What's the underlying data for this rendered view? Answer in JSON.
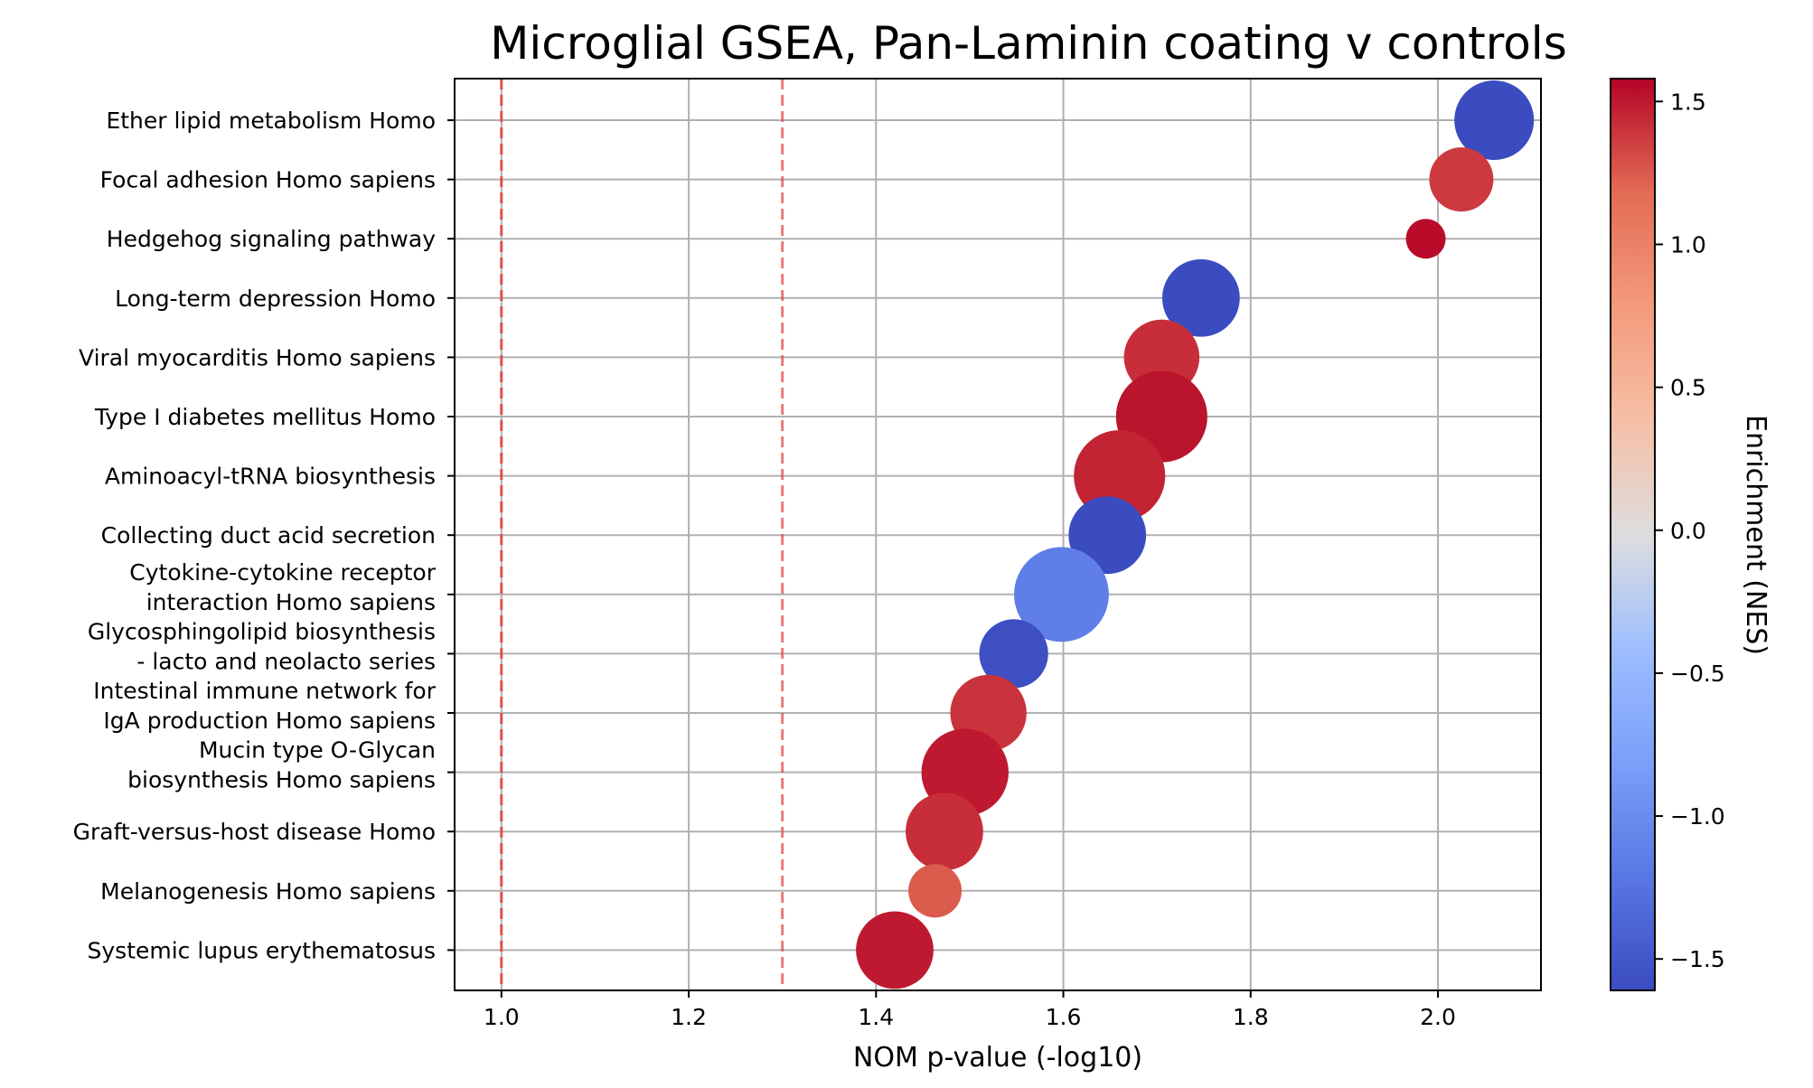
{
  "chart_data": {
    "type": "scatter",
    "title": "Microglial GSEA, Pan-Laminin coating v controls",
    "xlabel": "NOM p-value (-log10)",
    "colorbar_label": "Enrichment (NES)",
    "xlim": [
      0.95,
      2.11
    ],
    "x_ticks": [
      "1.0",
      "1.2",
      "1.4",
      "1.6",
      "1.8",
      "2.0"
    ],
    "x_tick_values": [
      1.0,
      1.2,
      1.4,
      1.6,
      1.8,
      2.0
    ],
    "colorbar_ticks": [
      "1.5",
      "1.0",
      "0.5",
      "0.0",
      "−0.5",
      "−1.0",
      "−1.5"
    ],
    "colorbar_tick_values": [
      1.5,
      1.0,
      0.5,
      0.0,
      -0.5,
      -1.0,
      -1.5
    ],
    "colorbar_range": [
      -1.61,
      1.58
    ],
    "colormap": "coolwarm",
    "reference_lines": [
      1.0,
      1.3
    ],
    "reference_line_color": "#e05050",
    "grid": true,
    "point_size_note": "relative bubble size, unitless",
    "points": [
      {
        "label": "Ether lipid metabolism Homo",
        "lines": [
          "Ether lipid metabolism Homo"
        ],
        "x": 2.06,
        "nes": -1.58,
        "size": 1.0
      },
      {
        "label": "Focal adhesion Homo sapiens",
        "lines": [
          "Focal adhesion Homo sapiens"
        ],
        "x": 2.025,
        "nes": 1.38,
        "size": 0.65
      },
      {
        "label": "Hedgehog signaling pathway",
        "lines": [
          "Hedgehog signaling pathway"
        ],
        "x": 1.987,
        "nes": 1.55,
        "size": 0.25
      },
      {
        "label": "Long-term depression Homo",
        "lines": [
          "Long-term depression Homo"
        ],
        "x": 1.747,
        "nes": -1.58,
        "size": 0.95
      },
      {
        "label": "Viral myocarditis Homo sapiens",
        "lines": [
          "Viral myocarditis Homo sapiens"
        ],
        "x": 1.705,
        "nes": 1.42,
        "size": 0.9
      },
      {
        "label": "Type I diabetes mellitus Homo",
        "lines": [
          "Type I diabetes mellitus Homo"
        ],
        "x": 1.705,
        "nes": 1.52,
        "size": 1.32
      },
      {
        "label": "Aminoacyl-tRNA biosynthesis",
        "lines": [
          "Aminoacyl-tRNA biosynthesis"
        ],
        "x": 1.66,
        "nes": 1.46,
        "size": 1.32
      },
      {
        "label": "Collecting duct acid secretion",
        "lines": [
          "Collecting duct acid secretion"
        ],
        "x": 1.647,
        "nes": -1.58,
        "size": 0.95
      },
      {
        "label": "Cytokine-cytokine receptor interaction Homo sapiens",
        "lines": [
          "Cytokine-cytokine receptor",
          "interaction Homo sapiens"
        ],
        "x": 1.598,
        "nes": -1.12,
        "size": 1.42
      },
      {
        "label": "Glycosphingolipid biosynthesis - lacto and neolacto series",
        "lines": [
          "Glycosphingolipid biosynthesis",
          "- lacto and neolacto series"
        ],
        "x": 1.547,
        "nes": -1.55,
        "size": 0.75
      },
      {
        "label": "Intestinal immune network for IgA production Homo sapiens",
        "lines": [
          "Intestinal immune network for",
          "IgA production Homo sapiens"
        ],
        "x": 1.52,
        "nes": 1.4,
        "size": 0.92
      },
      {
        "label": "Mucin type O-Glycan biosynthesis Homo sapiens",
        "lines": [
          "Mucin type O-Glycan",
          "biosynthesis Homo sapiens"
        ],
        "x": 1.495,
        "nes": 1.5,
        "size": 1.2
      },
      {
        "label": "Graft-versus-host disease Homo",
        "lines": [
          "Graft-versus-host disease Homo"
        ],
        "x": 1.473,
        "nes": 1.42,
        "size": 0.95
      },
      {
        "label": "Melanogenesis Homo sapiens",
        "lines": [
          "Melanogenesis Homo sapiens"
        ],
        "x": 1.463,
        "nes": 1.25,
        "size": 0.45
      },
      {
        "label": "Systemic lupus erythematosus",
        "lines": [
          "Systemic lupus erythematosus"
        ],
        "x": 1.42,
        "nes": 1.5,
        "size": 0.95
      }
    ]
  }
}
